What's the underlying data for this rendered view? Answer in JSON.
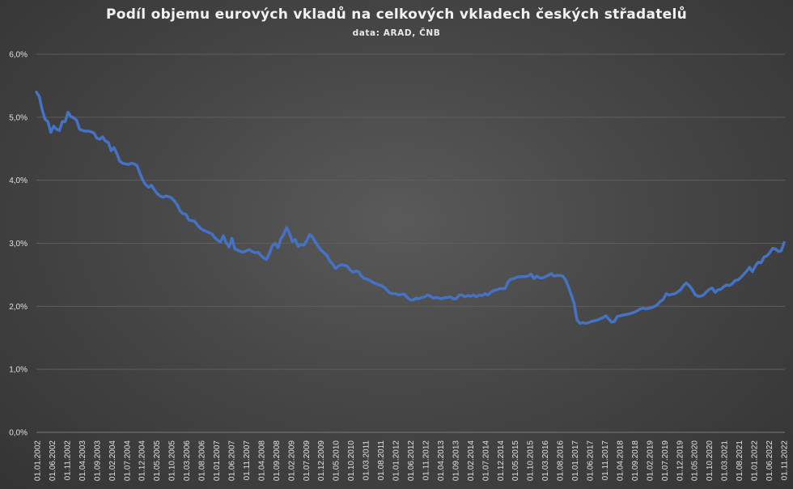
{
  "chart_data": {
    "type": "line",
    "title": "Podíl objemu eurových vkladů na celkových vkladech českých střadatelů",
    "subtitle": "data: ARAD, ČNB",
    "xlabel": "",
    "ylabel": "",
    "ylim": [
      0,
      6
    ],
    "yticks": [
      "0,0%",
      "1,0%",
      "2,0%",
      "3,0%",
      "4,0%",
      "5,0%",
      "6,0%"
    ],
    "grid": true,
    "legend": "none",
    "line_color": "#4472c4",
    "xticks": [
      "01.01.2002",
      "01.06.2002",
      "01.11.2002",
      "01.04.2003",
      "01.09.2003",
      "01.02.2004",
      "01.07.2004",
      "01.12.2004",
      "01.05.2005",
      "01.10.2005",
      "01.03.2006",
      "01.08.2006",
      "01.01.2007",
      "01.06.2007",
      "01.11.2007",
      "01.04.2008",
      "01.09.2008",
      "01.02.2009",
      "01.07.2009",
      "01.12.2009",
      "01.05.2010",
      "01.10.2010",
      "01.03.2011",
      "01.08.2011",
      "01.01.2012",
      "01.06.2012",
      "01.11.2012",
      "01.04.2013",
      "01.09.2013",
      "01.02.2014",
      "01.07.2014",
      "01.12.2014",
      "01.05.2015",
      "01.10.2015",
      "01.03.2016",
      "01.08.2016",
      "01.01.2017",
      "01.06.2017",
      "01.11.2017",
      "01.04.2018",
      "01.09.2018",
      "01.02.2019",
      "01.07.2019",
      "01.12.2019",
      "01.05.2020",
      "01.10.2020",
      "01.03.2021",
      "01.08.2021",
      "01.01.2022",
      "01.06.2022",
      "01.11.2022"
    ],
    "series": [
      {
        "values": [
          5.4,
          5.33,
          5.12,
          4.97,
          4.93,
          4.76,
          4.86,
          4.81,
          4.79,
          4.93,
          4.93,
          5.08,
          5.01,
          4.99,
          4.95,
          4.81,
          4.79,
          4.78,
          4.78,
          4.77,
          4.75,
          4.67,
          4.65,
          4.69,
          4.62,
          4.6,
          4.47,
          4.52,
          4.42,
          4.3,
          4.27,
          4.26,
          4.25,
          4.27,
          4.26,
          4.23,
          4.11,
          4.0,
          3.93,
          3.89,
          3.92,
          3.85,
          3.79,
          3.75,
          3.73,
          3.75,
          3.74,
          3.72,
          3.67,
          3.61,
          3.51,
          3.47,
          3.46,
          3.37,
          3.36,
          3.35,
          3.29,
          3.24,
          3.21,
          3.19,
          3.17,
          3.15,
          3.09,
          3.05,
          3.02,
          3.12,
          3.01,
          2.94,
          3.08,
          2.91,
          2.89,
          2.87,
          2.86,
          2.88,
          2.9,
          2.87,
          2.85,
          2.86,
          2.81,
          2.77,
          2.74,
          2.84,
          2.96,
          3.0,
          2.93,
          3.07,
          3.14,
          3.25,
          3.16,
          3.03,
          3.06,
          2.95,
          2.98,
          2.97,
          3.04,
          3.14,
          3.1,
          3.02,
          2.95,
          2.89,
          2.85,
          2.81,
          2.72,
          2.67,
          2.6,
          2.64,
          2.66,
          2.65,
          2.64,
          2.58,
          2.54,
          2.56,
          2.55,
          2.48,
          2.44,
          2.43,
          2.41,
          2.38,
          2.36,
          2.34,
          2.33,
          2.3,
          2.25,
          2.21,
          2.2,
          2.2,
          2.18,
          2.19,
          2.19,
          2.14,
          2.1,
          2.1,
          2.13,
          2.12,
          2.14,
          2.15,
          2.18,
          2.16,
          2.13,
          2.14,
          2.13,
          2.12,
          2.14,
          2.14,
          2.15,
          2.12,
          2.12,
          2.18,
          2.18,
          2.15,
          2.17,
          2.16,
          2.18,
          2.15,
          2.18,
          2.17,
          2.2,
          2.18,
          2.22,
          2.25,
          2.26,
          2.28,
          2.28,
          2.28,
          2.39,
          2.43,
          2.44,
          2.46,
          2.47,
          2.47,
          2.47,
          2.48,
          2.51,
          2.44,
          2.48,
          2.45,
          2.45,
          2.47,
          2.49,
          2.52,
          2.48,
          2.49,
          2.49,
          2.48,
          2.42,
          2.31,
          2.18,
          2.04,
          1.78,
          1.73,
          1.74,
          1.73,
          1.74,
          1.76,
          1.77,
          1.78,
          1.8,
          1.82,
          1.85,
          1.8,
          1.75,
          1.76,
          1.84,
          1.85,
          1.86,
          1.87,
          1.88,
          1.89,
          1.91,
          1.93,
          1.96,
          1.97,
          1.96,
          1.97,
          1.98,
          2.0,
          2.03,
          2.08,
          2.11,
          2.2,
          2.18,
          2.19,
          2.2,
          2.23,
          2.26,
          2.33,
          2.37,
          2.33,
          2.27,
          2.19,
          2.16,
          2.16,
          2.18,
          2.23,
          2.27,
          2.29,
          2.22,
          2.26,
          2.27,
          2.31,
          2.34,
          2.33,
          2.36,
          2.41,
          2.42,
          2.46,
          2.51,
          2.56,
          2.62,
          2.55,
          2.64,
          2.7,
          2.69,
          2.78,
          2.8,
          2.85,
          2.92,
          2.91,
          2.87,
          2.88,
          3.01
        ]
      }
    ]
  }
}
